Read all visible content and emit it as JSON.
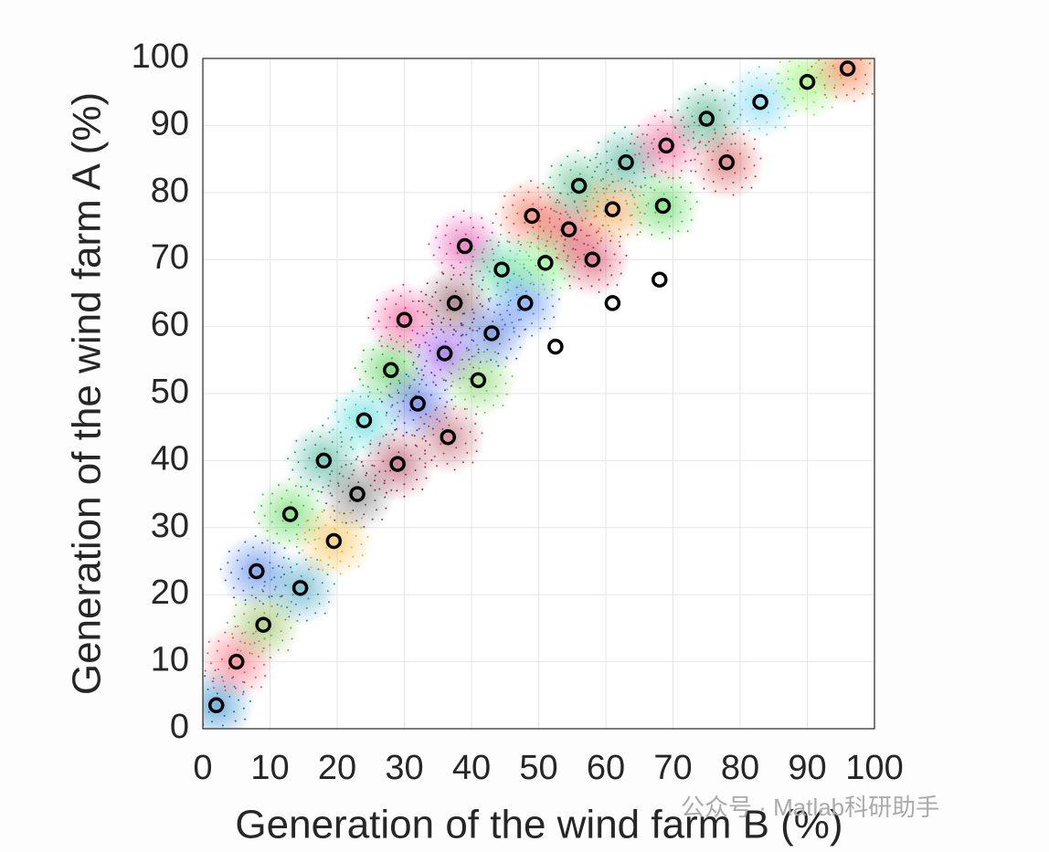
{
  "chart_data": {
    "type": "scatter",
    "x_label": "Generation of the wind farm B (%)",
    "y_label": "Generation of the wind farm A (%)",
    "watermark": "公众号 · Matlab科研助手",
    "xlim": [
      0,
      100
    ],
    "ylim": [
      0,
      100
    ],
    "xticks": [
      0,
      10,
      20,
      30,
      40,
      50,
      60,
      70,
      80,
      90,
      100
    ],
    "yticks": [
      0,
      10,
      20,
      30,
      40,
      50,
      60,
      70,
      80,
      90,
      100
    ],
    "grid": true,
    "marker_color": "#000000",
    "x": [
      2,
      5,
      9,
      8,
      14.5,
      13,
      19.5,
      18,
      23,
      24,
      29,
      28,
      32,
      30,
      36,
      36.5,
      37.5,
      39,
      41,
      43,
      44.5,
      48,
      49,
      51,
      52.5,
      54.5,
      56,
      58,
      61,
      61,
      63,
      68,
      68.5,
      69,
      75,
      78,
      83,
      90,
      96
    ],
    "values": [
      3.5,
      10,
      15.5,
      23.5,
      21,
      32,
      28,
      40,
      35,
      46,
      39.5,
      53.5,
      48.5,
      61,
      56,
      43.5,
      63.5,
      72,
      52,
      59,
      68.5,
      63.5,
      76.5,
      69.5,
      57,
      74.5,
      81,
      70,
      77.5,
      63.5,
      84.5,
      67,
      78,
      87,
      91,
      84.5,
      93.5,
      96.5,
      98.5
    ],
    "cluster_colors": [
      "#0072bd",
      "#ff4455",
      "#77ac30",
      "#2060e0",
      "#1f8fb0",
      "#33cc33",
      "#f0b020",
      "#179c7d",
      "#555555",
      "#22cccc",
      "#a0203c",
      "#22bb22",
      "#2244dd",
      "#ee2277",
      "#7722ee",
      "#b04050",
      "#6b2a3a",
      "#dd2299",
      "#66cc44",
      "#2255cc",
      "#22cc88",
      "#3377ee",
      "#ee4422",
      "#66ee66",
      null,
      "#dd3333",
      "#22aa66",
      "#cc2244",
      "#ee8822",
      null,
      "#119977",
      null,
      "#33cc33",
      "#ee3377",
      "#119966",
      "#cc3333",
      "#55ccee",
      "#77ee44",
      "#ee5511"
    ]
  }
}
